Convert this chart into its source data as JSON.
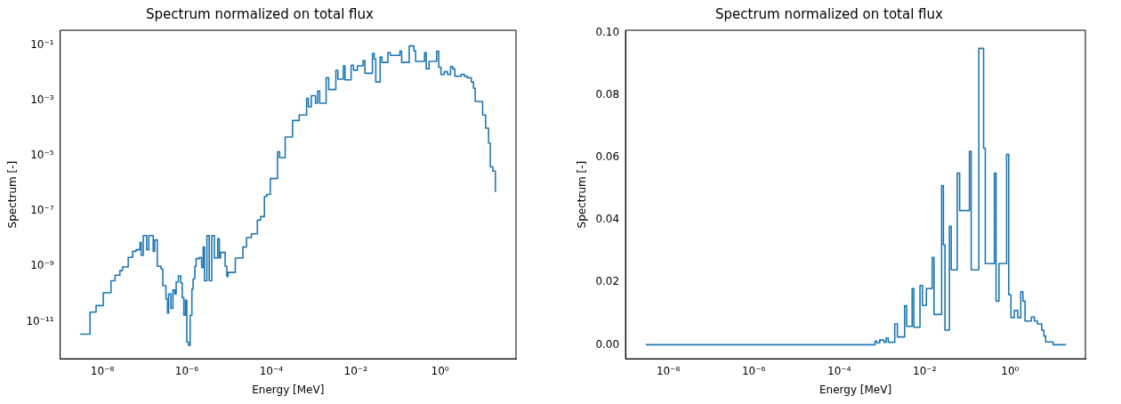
{
  "chart_data": [
    {
      "type": "step",
      "title": "Spectrum normalized on total flux",
      "xlabel": "Energy [MeV]",
      "ylabel": "Spectrum [-]",
      "log": "xy",
      "color": "#1f77b4",
      "x": [
        3e-09,
        5.1e-09,
        7.1e-09,
        1.05e-08,
        1.6e-08,
        2e-08,
        2.6e-08,
        3e-08,
        4.1e-08,
        5.2e-08,
        6.3e-08,
        7.8e-08,
        8.3e-08,
        9.3e-08,
        1.12e-07,
        1.26e-07,
        1.6e-07,
        1.74e-07,
        2e-07,
        2.45e-07,
        2.7e-07,
        3.2e-07,
        3.5e-07,
        3.7e-07,
        4.2e-07,
        4.7e-07,
        5.2e-07,
        5.6e-07,
        6.3e-07,
        7.2e-07,
        7.8e-07,
        8.5e-07,
        9.3e-07,
        1e-06,
        1.1e-06,
        1.2e-06,
        1.32e-06,
        1.41e-06,
        1.55e-06,
        1.66e-06,
        2e-06,
        2.24e-06,
        2.45e-06,
        2.63e-06,
        3e-06,
        3.4e-06,
        3.9e-06,
        4.5e-06,
        5.4e-06,
        5.9e-06,
        6.3e-06,
        8.1e-06,
        8.9e-06,
        9.5e-06,
        1.41e-05,
        2.14e-05,
        2.6e-05,
        3.4e-05,
        4.7e-05,
        5.6e-05,
        6.9e-05,
        7.8e-05,
        9.5e-05,
        0.000141,
        0.000158,
        0.000214,
        0.00032,
        0.00046,
        0.00069,
        0.00076,
        0.00089,
        0.00112,
        0.00126,
        0.00141,
        0.002,
        0.0023,
        0.0034,
        0.0038,
        0.0051,
        0.0056,
        0.0078,
        0.0089,
        0.011,
        0.015,
        0.0166,
        0.025,
        0.0275,
        0.03,
        0.038,
        0.042,
        0.058,
        0.066,
        0.112,
        0.123,
        0.186,
        0.24,
        0.263,
        0.43,
        0.47,
        0.55,
        0.83,
        0.93,
        1.05,
        1.26,
        1.51,
        1.78,
        2.0,
        2.24,
        3.16,
        3.72,
        4.37,
        5.5,
        6.2,
        6.8,
        10.2,
        12,
        14.1,
        15.5,
        17.8,
        20.4
      ],
      "values": [
        3.5e-12,
        2.2e-11,
        3.8e-11,
        1.1e-10,
        3e-10,
        4.8e-10,
        7e-10,
        9.5e-10,
        2.1e-09,
        3.5e-09,
        4e-09,
        7.4e-09,
        2.5e-09,
        1.3e-08,
        4e-09,
        1.3e-08,
        3.5e-09,
        9e-09,
        1e-09,
        8e-10,
        2e-10,
        6.6e-11,
        2e-11,
        1e-10,
        3e-11,
        1.4e-10,
        1e-10,
        2.7e-10,
        4.5e-10,
        2.5e-10,
        7.4e-11,
        1.7e-11,
        6e-11,
        1.8e-12,
        1.4e-12,
        1.7e-11,
        1.5e-10,
        3.5e-10,
        1e-09,
        1.9e-09,
        2.1e-09,
        9e-10,
        5e-09,
        3e-10,
        1.3e-08,
        3e-10,
        1.3e-08,
        2e-09,
        1e-08,
        2e-09,
        3.2e-09,
        1e-09,
        4.3e-10,
        6e-10,
        2e-09,
        5e-09,
        1.1e-08,
        1.5e-08,
        4.7e-08,
        6.3e-08,
        3.4e-07,
        4e-07,
        1.5e-06,
        1.4e-05,
        8.5e-06,
        4.8e-05,
        0.00019,
        0.0003,
        0.0012,
        0.0006,
        0.0015,
        0.0008,
        0.0022,
        0.0008,
        0.0067,
        0.0025,
        0.0125,
        0.0059,
        0.018,
        0.0056,
        0.019,
        0.0126,
        0.018,
        0.028,
        0.0097,
        0.051,
        0.032,
        0.0047,
        0.038,
        0.024,
        0.055,
        0.043,
        0.062,
        0.024,
        0.095,
        0.063,
        0.026,
        0.055,
        0.014,
        0.026,
        0.061,
        0.016,
        0.0087,
        0.011,
        0.0087,
        0.017,
        0.014,
        0.0076,
        0.0089,
        0.0076,
        0.0067,
        0.0047,
        0.0028,
        0.00093,
        0.0003,
        0.0001,
        2.9e-05,
        4e-06,
        2.8e-06,
        4.9e-07
      ],
      "xlim": [
        1e-09,
        63
      ],
      "ylim": [
        4.5e-13,
        0.35
      ],
      "xticks": [
        {
          "value": 1e-08,
          "label": "10⁻⁸"
        },
        {
          "value": 1e-06,
          "label": "10⁻⁶"
        },
        {
          "value": 0.0001,
          "label": "10⁻⁴"
        },
        {
          "value": 0.01,
          "label": "10⁻²"
        },
        {
          "value": 1,
          "label": "10⁰"
        }
      ],
      "yticks": [
        {
          "value": 1e-11,
          "label": "10⁻¹¹"
        },
        {
          "value": 1e-09,
          "label": "10⁻⁹"
        },
        {
          "value": 1e-07,
          "label": "10⁻⁷"
        },
        {
          "value": 1e-05,
          "label": "10⁻⁵"
        },
        {
          "value": 0.001,
          "label": "10⁻³"
        },
        {
          "value": 0.1,
          "label": "10⁻¹"
        }
      ]
    },
    {
      "type": "step",
      "title": "Spectrum normalized on total flux",
      "xlabel": "Energy [MeV]",
      "ylabel": "Spectrum [-]",
      "log": "x",
      "color": "#1f77b4",
      "x": [
        3e-09,
        5.1e-09,
        7.1e-09,
        1.05e-08,
        1.6e-08,
        2e-08,
        2.6e-08,
        3e-08,
        4.1e-08,
        5.2e-08,
        6.3e-08,
        7.8e-08,
        8.3e-08,
        9.3e-08,
        1.12e-07,
        1.26e-07,
        1.6e-07,
        1.74e-07,
        2e-07,
        2.45e-07,
        2.7e-07,
        3.2e-07,
        3.5e-07,
        3.7e-07,
        4.2e-07,
        4.7e-07,
        5.2e-07,
        5.6e-07,
        6.3e-07,
        7.2e-07,
        7.8e-07,
        8.5e-07,
        9.3e-07,
        1e-06,
        1.1e-06,
        1.2e-06,
        1.32e-06,
        1.41e-06,
        1.55e-06,
        1.66e-06,
        2e-06,
        2.24e-06,
        2.45e-06,
        2.63e-06,
        3e-06,
        3.4e-06,
        3.9e-06,
        4.5e-06,
        5.4e-06,
        5.9e-06,
        6.3e-06,
        8.1e-06,
        8.9e-06,
        9.5e-06,
        1.41e-05,
        2.14e-05,
        2.6e-05,
        3.4e-05,
        4.7e-05,
        5.6e-05,
        6.9e-05,
        7.8e-05,
        9.5e-05,
        0.000141,
        0.000158,
        0.000214,
        0.00032,
        0.00046,
        0.00069,
        0.00076,
        0.00089,
        0.00112,
        0.00126,
        0.00141,
        0.002,
        0.0023,
        0.0034,
        0.0038,
        0.0051,
        0.0056,
        0.0078,
        0.0089,
        0.011,
        0.015,
        0.0166,
        0.025,
        0.0275,
        0.03,
        0.038,
        0.042,
        0.058,
        0.066,
        0.112,
        0.123,
        0.186,
        0.24,
        0.263,
        0.43,
        0.47,
        0.55,
        0.83,
        0.93,
        1.05,
        1.26,
        1.51,
        1.78,
        2.0,
        2.24,
        3.16,
        3.72,
        4.37,
        5.5,
        6.2,
        6.8,
        10.2,
        12,
        14.1,
        15.5,
        17.8,
        20.4
      ],
      "values": [
        0,
        0,
        0,
        0,
        0,
        0,
        0,
        0,
        0,
        0,
        0,
        0,
        0,
        0,
        0,
        0,
        0,
        0,
        0,
        0,
        0,
        0,
        0,
        0,
        0,
        0,
        0,
        0,
        0,
        0,
        0,
        0,
        0,
        0,
        0,
        0,
        0,
        0,
        0,
        0,
        0,
        0,
        0,
        0,
        0,
        0,
        0,
        0,
        0,
        0,
        0,
        0,
        0,
        0,
        0,
        0,
        0,
        0,
        0,
        0,
        0,
        0,
        0,
        0,
        0,
        0,
        0,
        0,
        0.0012,
        0.0006,
        0.0015,
        0.0008,
        0.0022,
        0.0008,
        0.0067,
        0.0025,
        0.0125,
        0.0059,
        0.018,
        0.0056,
        0.019,
        0.0126,
        0.018,
        0.028,
        0.0097,
        0.051,
        0.032,
        0.0047,
        0.038,
        0.024,
        0.055,
        0.043,
        0.062,
        0.024,
        0.095,
        0.063,
        0.026,
        0.055,
        0.014,
        0.026,
        0.061,
        0.016,
        0.0087,
        0.011,
        0.0087,
        0.017,
        0.014,
        0.0076,
        0.0089,
        0.0076,
        0.0067,
        0.0047,
        0.0028,
        0.0009,
        0,
        0,
        0,
        0,
        0,
        0
      ],
      "xlim": [
        1e-09,
        58
      ],
      "ylim": [
        -0.0045,
        0.1008
      ],
      "xticks": [
        {
          "value": 1e-08,
          "label": "10⁻⁸"
        },
        {
          "value": 1e-06,
          "label": "10⁻⁶"
        },
        {
          "value": 0.0001,
          "label": "10⁻⁴"
        },
        {
          "value": 0.01,
          "label": "10⁻²"
        },
        {
          "value": 1,
          "label": "10⁰"
        }
      ],
      "yticks": [
        {
          "value": 0,
          "label": "0.00"
        },
        {
          "value": 0.02,
          "label": "0.02"
        },
        {
          "value": 0.04,
          "label": "0.04"
        },
        {
          "value": 0.06,
          "label": "0.06"
        },
        {
          "value": 0.08,
          "label": "0.08"
        },
        {
          "value": 0.1,
          "label": "0.10"
        }
      ]
    }
  ]
}
